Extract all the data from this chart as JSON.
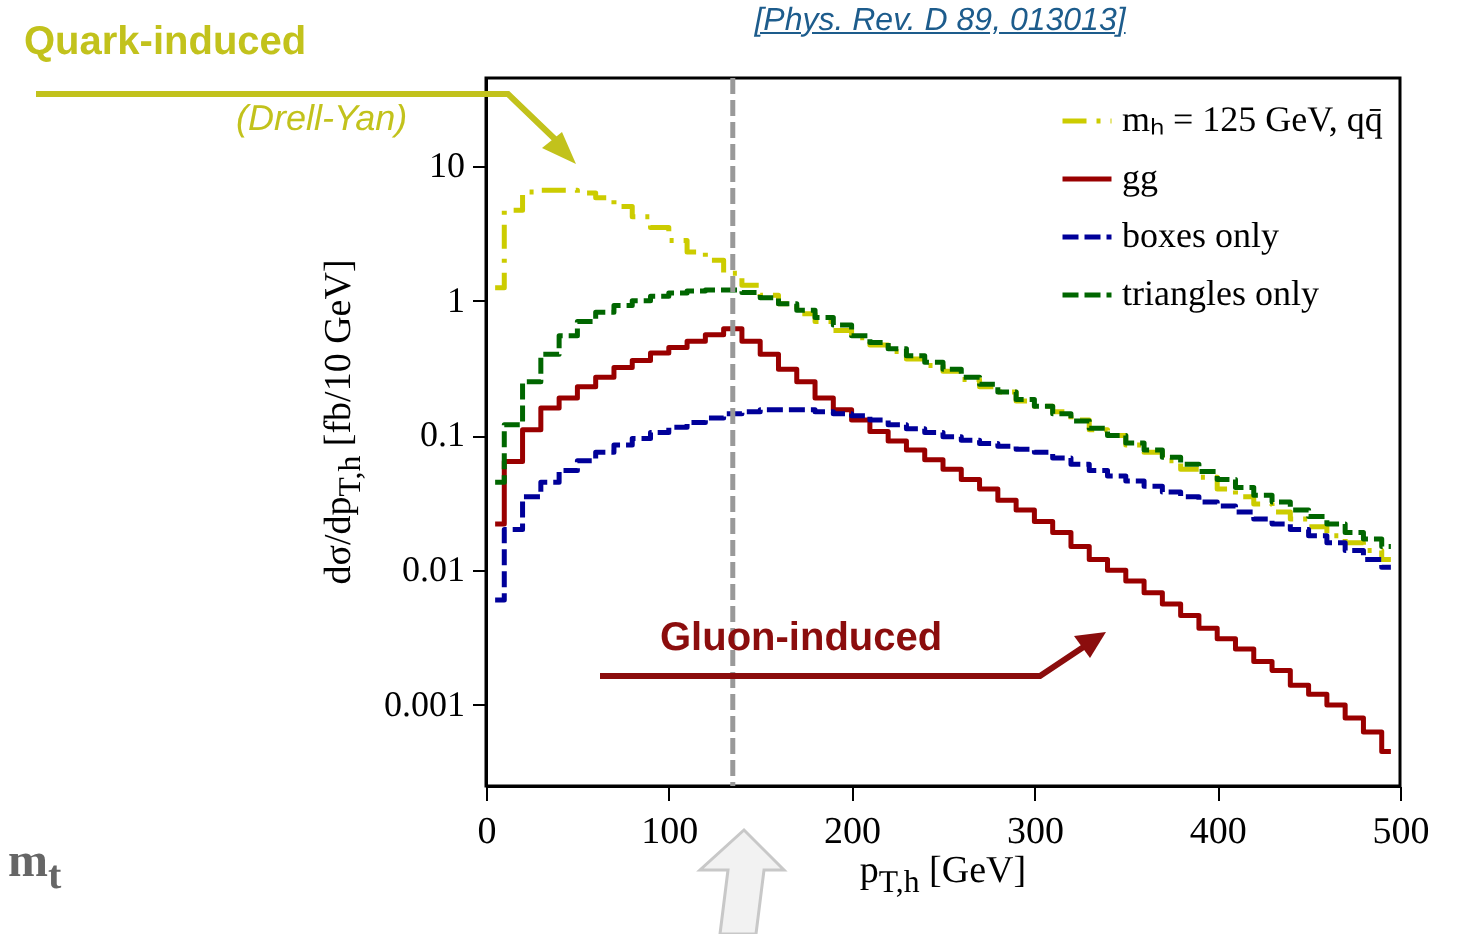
{
  "chart_data": {
    "type": "step",
    "xlabel": "p$_{T,h}$ [GeV]",
    "ylabel": "dσ/dp$_{T,h}$ [fb/10 GeV]",
    "annotations": [
      "[Phys. Rev. D 89, 013013]",
      "Quark-induced",
      "(Drell-Yan)",
      "Gluon-induced",
      "m$_{t}$"
    ],
    "x": [
      5,
      15,
      25,
      35,
      45,
      55,
      65,
      75,
      85,
      95,
      105,
      115,
      125,
      135,
      145,
      155,
      165,
      175,
      185,
      195,
      205,
      215,
      225,
      235,
      245,
      255,
      265,
      275,
      285,
      295,
      305,
      315,
      325,
      335,
      345,
      355,
      365,
      375,
      385,
      395,
      405,
      415,
      425,
      435,
      445,
      455,
      465,
      475,
      485,
      495
    ],
    "series": [
      {
        "name": "mₕ = 125 GeV, qq̄",
        "color": "#cccc00",
        "line_style": "dashdot",
        "values": [
          1.25,
          4.7,
          6.4,
          6.6,
          6.6,
          6.3,
          5.8,
          5.0,
          4.2,
          3.5,
          2.8,
          2.3,
          2.0,
          1.6,
          1.3,
          1.1,
          0.95,
          0.8,
          0.7,
          0.6,
          0.53,
          0.47,
          0.42,
          0.37,
          0.33,
          0.3,
          0.26,
          0.23,
          0.21,
          0.18,
          0.165,
          0.15,
          0.13,
          0.11,
          0.1,
          0.085,
          0.075,
          0.065,
          0.056,
          0.049,
          0.04,
          0.035,
          0.031,
          0.027,
          0.024,
          0.021,
          0.018,
          0.016,
          0.014,
          0.012
        ]
      },
      {
        "name": "gg",
        "color": "#990000",
        "line_style": "solid",
        "values": [
          0.022,
          0.064,
          0.11,
          0.16,
          0.19,
          0.23,
          0.27,
          0.32,
          0.36,
          0.41,
          0.45,
          0.5,
          0.56,
          0.62,
          0.5,
          0.4,
          0.31,
          0.25,
          0.19,
          0.155,
          0.13,
          0.107,
          0.091,
          0.078,
          0.066,
          0.056,
          0.047,
          0.04,
          0.033,
          0.028,
          0.023,
          0.019,
          0.015,
          0.012,
          0.01,
          0.0083,
          0.0068,
          0.0056,
          0.0046,
          0.0037,
          0.0031,
          0.0026,
          0.0021,
          0.0018,
          0.0014,
          0.0012,
          0.001,
          0.0008,
          0.00063,
          0.00045
        ]
      },
      {
        "name": "boxes only",
        "color": "#000099",
        "line_style": "dashed",
        "values": [
          0.006,
          0.02,
          0.035,
          0.045,
          0.055,
          0.065,
          0.075,
          0.085,
          0.095,
          0.105,
          0.115,
          0.125,
          0.135,
          0.145,
          0.15,
          0.155,
          0.155,
          0.155,
          0.15,
          0.145,
          0.14,
          0.13,
          0.12,
          0.112,
          0.105,
          0.098,
          0.092,
          0.087,
          0.083,
          0.079,
          0.075,
          0.068,
          0.061,
          0.055,
          0.05,
          0.046,
          0.042,
          0.038,
          0.035,
          0.032,
          0.03,
          0.027,
          0.024,
          0.022,
          0.02,
          0.018,
          0.016,
          0.014,
          0.012,
          0.0105
        ]
      },
      {
        "name": "triangles only",
        "color": "#006600",
        "line_style": "dashed",
        "values": [
          0.045,
          0.12,
          0.25,
          0.4,
          0.55,
          0.7,
          0.82,
          0.92,
          1.0,
          1.08,
          1.14,
          1.18,
          1.2,
          1.2,
          1.15,
          1.05,
          0.95,
          0.85,
          0.75,
          0.66,
          0.55,
          0.49,
          0.44,
          0.39,
          0.35,
          0.31,
          0.27,
          0.24,
          0.21,
          0.185,
          0.165,
          0.145,
          0.128,
          0.113,
          0.1,
          0.088,
          0.078,
          0.069,
          0.061,
          0.054,
          0.047,
          0.041,
          0.036,
          0.032,
          0.028,
          0.025,
          0.022,
          0.019,
          0.017,
          0.015
        ]
      }
    ],
    "xlim": [
      0,
      500
    ],
    "xticks": [
      0,
      100,
      200,
      300,
      400,
      500
    ],
    "ylim": [
      0.00025,
      45
    ],
    "yticks": [
      0.001,
      0.01,
      0.1,
      1,
      10
    ],
    "log": true,
    "legend": "top right",
    "ref_lines": [
      {
        "axis": "x",
        "value": 135,
        "color": "#999999",
        "line_style": "dashed"
      }
    ]
  }
}
